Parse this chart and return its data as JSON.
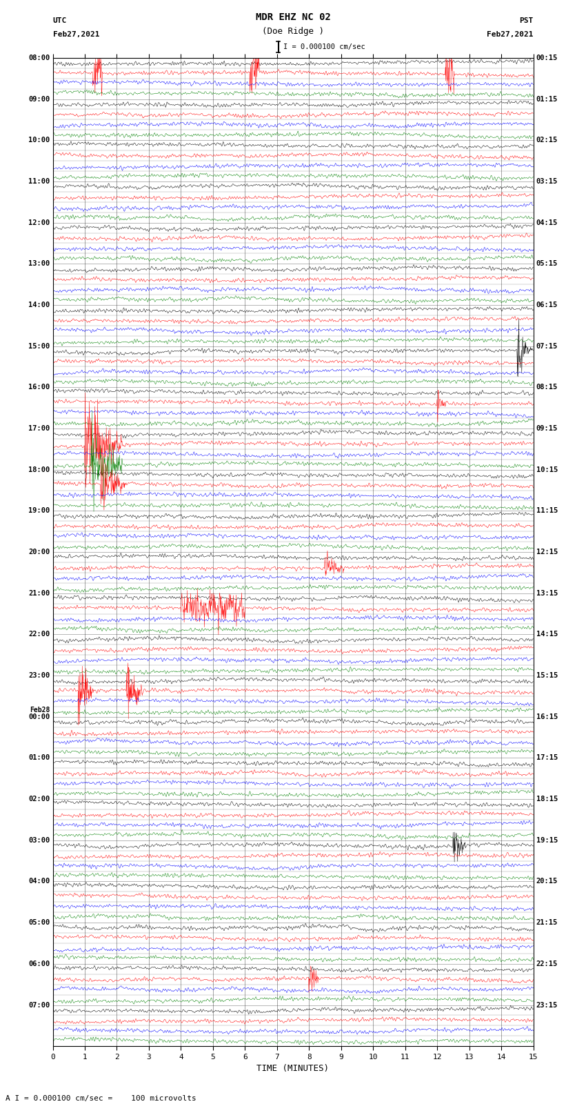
{
  "title_line1": "MDR EHZ NC 02",
  "title_line2": "(Doe Ridge )",
  "scale_text": "I = 0.000100 cm/sec",
  "footer_text": "A I = 0.000100 cm/sec =    100 microvolts",
  "utc_label": "UTC",
  "utc_date": "Feb27,2021",
  "pst_label": "PST",
  "pst_date": "Feb27,2021",
  "xlabel": "TIME (MINUTES)",
  "background_color": "#ffffff",
  "trace_colors": [
    "black",
    "red",
    "blue",
    "green"
  ],
  "left_labels": [
    [
      "08:00",
      0
    ],
    [
      "09:00",
      4
    ],
    [
      "10:00",
      8
    ],
    [
      "11:00",
      12
    ],
    [
      "12:00",
      16
    ],
    [
      "13:00",
      20
    ],
    [
      "14:00",
      24
    ],
    [
      "15:00",
      28
    ],
    [
      "16:00",
      32
    ],
    [
      "17:00",
      36
    ],
    [
      "18:00",
      40
    ],
    [
      "19:00",
      44
    ],
    [
      "20:00",
      48
    ],
    [
      "21:00",
      52
    ],
    [
      "22:00",
      56
    ],
    [
      "23:00",
      60
    ],
    [
      "Feb28",
      64
    ],
    [
      "00:00",
      64
    ],
    [
      "01:00",
      68
    ],
    [
      "02:00",
      72
    ],
    [
      "03:00",
      76
    ],
    [
      "04:00",
      80
    ],
    [
      "05:00",
      84
    ],
    [
      "06:00",
      88
    ],
    [
      "07:00",
      92
    ]
  ],
  "right_labels": [
    [
      "00:15",
      0
    ],
    [
      "01:15",
      4
    ],
    [
      "02:15",
      8
    ],
    [
      "03:15",
      12
    ],
    [
      "04:15",
      16
    ],
    [
      "05:15",
      20
    ],
    [
      "06:15",
      24
    ],
    [
      "07:15",
      28
    ],
    [
      "08:15",
      32
    ],
    [
      "09:15",
      36
    ],
    [
      "10:15",
      40
    ],
    [
      "11:15",
      44
    ],
    [
      "12:15",
      48
    ],
    [
      "13:15",
      52
    ],
    [
      "14:15",
      56
    ],
    [
      "15:15",
      60
    ],
    [
      "16:15",
      64
    ],
    [
      "17:15",
      68
    ],
    [
      "18:15",
      72
    ],
    [
      "19:15",
      76
    ],
    [
      "20:15",
      80
    ],
    [
      "21:15",
      84
    ],
    [
      "22:15",
      88
    ],
    [
      "23:15",
      92
    ]
  ],
  "n_rows": 96,
  "xmin": 0,
  "xmax": 15,
  "seed": 42
}
